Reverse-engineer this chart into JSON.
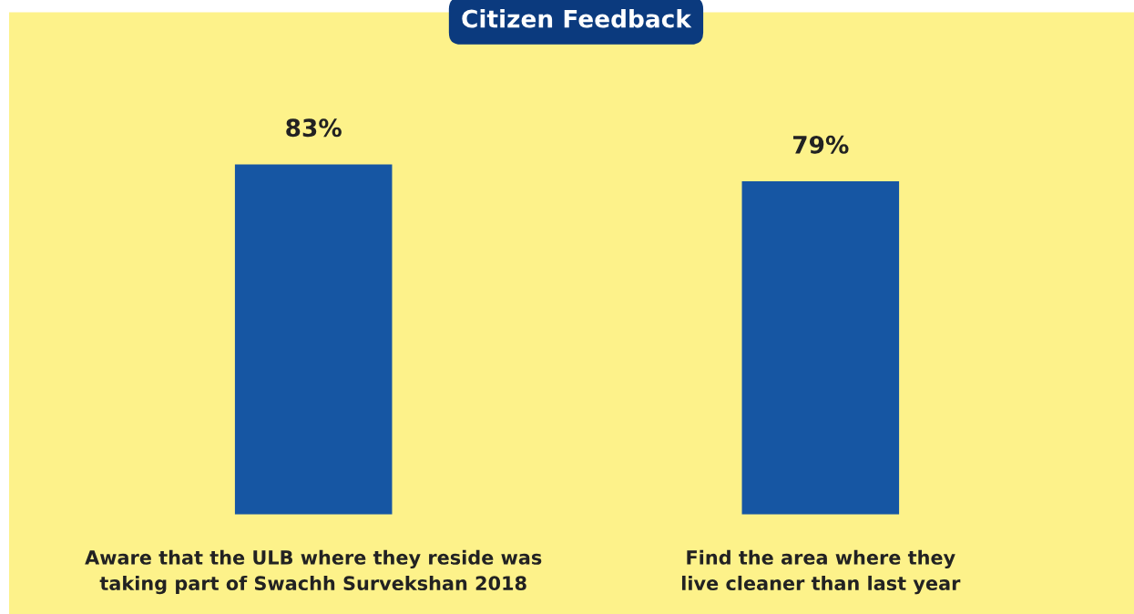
{
  "chart_data": {
    "type": "bar",
    "title": "Citizen Feedback",
    "categories": [
      "Aware that the ULB where they reside was taking part of Swachh Survekshan 2018",
      "Find the area where they live cleaner than last year"
    ],
    "values": [
      83,
      79
    ],
    "color": "#1656a3",
    "value_labels": [
      "83%",
      "79%"
    ]
  }
}
